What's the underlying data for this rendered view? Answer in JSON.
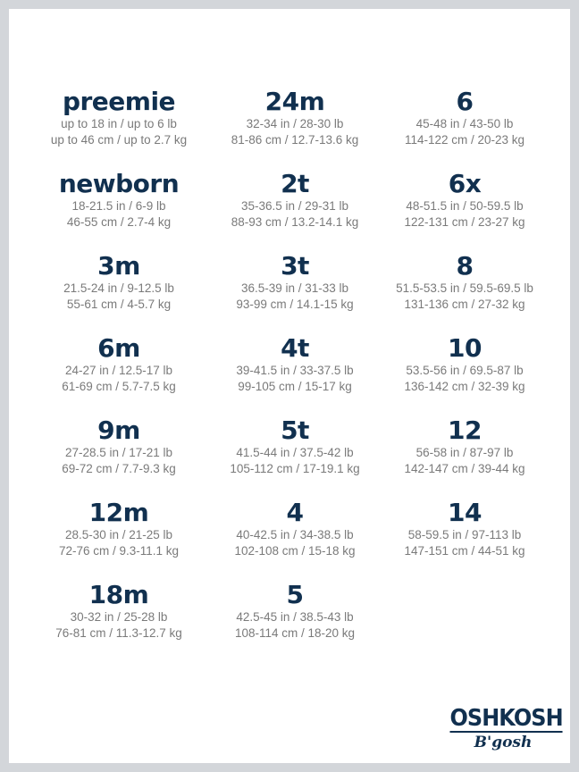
{
  "colors": {
    "navy": "#11304f",
    "text": "#7a7a7a",
    "border": "#d3d6da"
  },
  "columns": [
    [
      {
        "size": "preemie",
        "imperial": "up to 18 in / up to 6 lb",
        "metric": "up to 46 cm / up to 2.7 kg"
      },
      {
        "size": "newborn",
        "imperial": "18-21.5 in / 6-9 lb",
        "metric": "46-55 cm / 2.7-4 kg"
      },
      {
        "size": "3m",
        "imperial": "21.5-24 in / 9-12.5 lb",
        "metric": "55-61 cm / 4-5.7 kg"
      },
      {
        "size": "6m",
        "imperial": "24-27 in / 12.5-17 lb",
        "metric": "61-69 cm / 5.7-7.5 kg"
      },
      {
        "size": "9m",
        "imperial": "27-28.5 in / 17-21 lb",
        "metric": "69-72 cm / 7.7-9.3 kg"
      },
      {
        "size": "12m",
        "imperial": "28.5-30 in / 21-25 lb",
        "metric": "72-76 cm / 9.3-11.1 kg"
      },
      {
        "size": "18m",
        "imperial": "30-32 in / 25-28 lb",
        "metric": "76-81 cm / 11.3-12.7 kg"
      }
    ],
    [
      {
        "size": "24m",
        "imperial": "32-34 in / 28-30 lb",
        "metric": "81-86 cm / 12.7-13.6 kg"
      },
      {
        "size": "2t",
        "imperial": "35-36.5 in / 29-31 lb",
        "metric": "88-93 cm / 13.2-14.1 kg"
      },
      {
        "size": "3t",
        "imperial": "36.5-39 in / 31-33 lb",
        "metric": "93-99 cm / 14.1-15 kg"
      },
      {
        "size": "4t",
        "imperial": "39-41.5 in / 33-37.5 lb",
        "metric": "99-105 cm / 15-17 kg"
      },
      {
        "size": "5t",
        "imperial": "41.5-44 in / 37.5-42 lb",
        "metric": "105-112 cm / 17-19.1 kg"
      },
      {
        "size": "4",
        "imperial": "40-42.5 in / 34-38.5 lb",
        "metric": "102-108 cm / 15-18 kg"
      },
      {
        "size": "5",
        "imperial": "42.5-45 in / 38.5-43 lb",
        "metric": "108-114 cm / 18-20 kg"
      }
    ],
    [
      {
        "size": "6",
        "imperial": "45-48 in / 43-50 lb",
        "metric": "114-122 cm / 20-23 kg"
      },
      {
        "size": "6x",
        "imperial": "48-51.5 in / 50-59.5 lb",
        "metric": "122-131 cm / 23-27 kg"
      },
      {
        "size": "8",
        "imperial": "51.5-53.5 in / 59.5-69.5 lb",
        "metric": "131-136 cm / 27-32 kg"
      },
      {
        "size": "10",
        "imperial": "53.5-56 in / 69.5-87 lb",
        "metric": "136-142 cm / 32-39 kg"
      },
      {
        "size": "12",
        "imperial": "56-58 in / 87-97 lb",
        "metric": "142-147 cm / 39-44 kg"
      },
      {
        "size": "14",
        "imperial": "58-59.5 in / 97-113 lb",
        "metric": "147-151 cm / 44-51 kg"
      }
    ]
  ],
  "logo": {
    "line1": "OSHKOSH",
    "line2": "B'gosh"
  }
}
